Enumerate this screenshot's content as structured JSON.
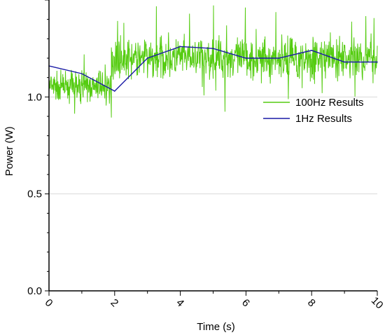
{
  "chart_data": {
    "type": "line",
    "title": "",
    "xlabel": "Time (s)",
    "ylabel": "Power (W)",
    "xlim": [
      0,
      10
    ],
    "ylim": [
      0,
      1.5
    ],
    "x_ticks": [
      0,
      2,
      4,
      6,
      8,
      10
    ],
    "x_tick_labels": [
      "0",
      "2",
      "4",
      "6",
      "8",
      "10"
    ],
    "y_ticks": [
      0.0,
      0.5,
      1.0
    ],
    "y_tick_labels": [
      "0.0",
      "0.5",
      "1.0"
    ],
    "grid": "horizontal",
    "legend_position": "right",
    "series": [
      {
        "name": "100Hz Results",
        "color": "#55cc11",
        "sampling": "100 Hz noisy trace",
        "segments": [
          {
            "x_start": 0.0,
            "x_end": 1.9,
            "mean": 1.05,
            "spread": 0.05
          },
          {
            "x_start": 1.9,
            "x_end": 10.0,
            "mean": 1.2,
            "spread": 0.07
          }
        ]
      },
      {
        "name": "1Hz Results",
        "color": "#1a1aa6",
        "x": [
          0,
          1,
          2,
          3,
          4,
          5,
          6,
          7,
          8,
          9,
          10
        ],
        "y": [
          1.16,
          1.12,
          1.03,
          1.2,
          1.26,
          1.25,
          1.2,
          1.2,
          1.24,
          1.18,
          1.18
        ]
      }
    ]
  }
}
